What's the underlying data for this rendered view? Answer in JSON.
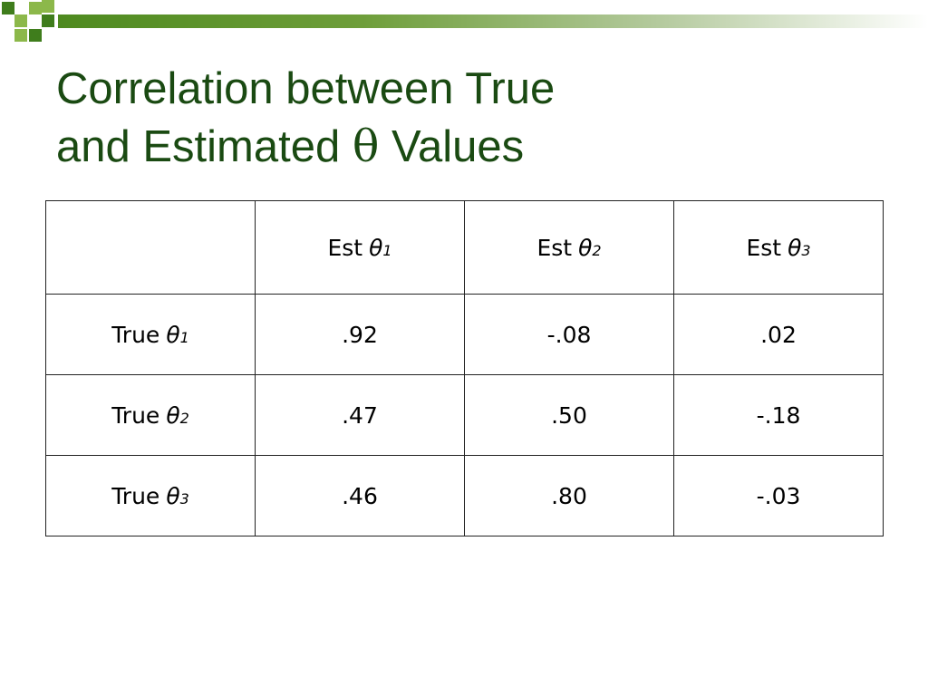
{
  "colors": {
    "title": "#1a4a12",
    "bar_start": "#4e8a1f",
    "square_dark": "#3f7d1c",
    "square_light": "#8cb84a"
  },
  "title": {
    "line1": "Correlation between True",
    "line2_prefix": "and Estimated ",
    "symbol": "θ",
    "line2_suffix": " Values"
  },
  "table": {
    "columns": [
      {
        "prefix": "Est",
        "symbol": "θ",
        "index": "1"
      },
      {
        "prefix": "Est",
        "symbol": "θ",
        "index": "2"
      },
      {
        "prefix": "Est",
        "symbol": "θ",
        "index": "3"
      }
    ],
    "rows": [
      {
        "label": {
          "prefix": "True",
          "symbol": "θ",
          "index": "1"
        },
        "values": [
          ".92",
          "-.08",
          ".02"
        ]
      },
      {
        "label": {
          "prefix": "True",
          "symbol": "θ",
          "index": "2"
        },
        "values": [
          ".47",
          ".50",
          "-.18"
        ]
      },
      {
        "label": {
          "prefix": "True",
          "symbol": "θ",
          "index": "3"
        },
        "values": [
          ".46",
          ".80",
          "-.03"
        ]
      }
    ]
  }
}
